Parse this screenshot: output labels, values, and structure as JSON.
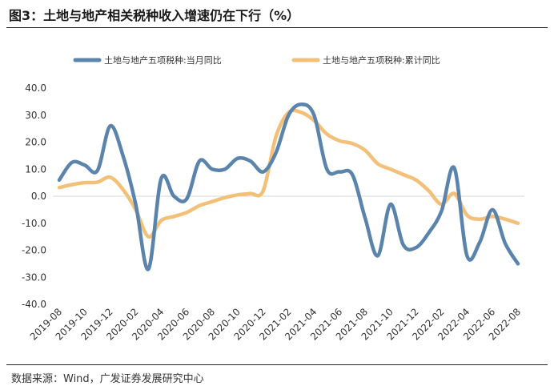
{
  "title": "图3：土地与地产相关税种收入增速仍在下行（%）",
  "source": "数据来源：Wind，广发证券发展研究中心",
  "chart_data": {
    "type": "line",
    "title": "图3：土地与地产相关税种收入增速仍在下行（%）",
    "xlabel": "",
    "ylabel": "",
    "ylim": [
      -40,
      40
    ],
    "yticks": [
      "40.0",
      "30.0",
      "20.0",
      "10.0",
      "0.0",
      "-10.0",
      "-20.0",
      "-30.0",
      "-40.0"
    ],
    "ytick_values": [
      40,
      30,
      20,
      10,
      0,
      -10,
      -20,
      -30,
      -40
    ],
    "legend_position": "top",
    "x_tick_labels": [
      "2019-08",
      "2019-10",
      "2019-12",
      "2020-02",
      "2020-04",
      "2020-06",
      "2020-08",
      "2020-10",
      "2020-12",
      "2021-02",
      "2021-04",
      "2021-06",
      "2021-08",
      "2021-10",
      "2021-12",
      "2022-02",
      "2022-04",
      "2022-06",
      "2022-08"
    ],
    "x": [
      "2019-08",
      "2019-09",
      "2019-10",
      "2019-11",
      "2019-12",
      "2020-01",
      "2020-02",
      "2020-03",
      "2020-04",
      "2020-05",
      "2020-06",
      "2020-07",
      "2020-08",
      "2020-09",
      "2020-10",
      "2020-11",
      "2020-12",
      "2021-01",
      "2021-02",
      "2021-03",
      "2021-04",
      "2021-05",
      "2021-06",
      "2021-07",
      "2021-08",
      "2021-09",
      "2021-10",
      "2021-11",
      "2021-12",
      "2022-01",
      "2022-02",
      "2022-03",
      "2022-04",
      "2022-05",
      "2022-06",
      "2022-07",
      "2022-08"
    ],
    "series": [
      {
        "name": "土地与地产五项税种:当月同比",
        "color": "#5b84ad",
        "values": [
          6.0,
          12.5,
          11.5,
          9.5,
          26.0,
          15.0,
          -3.0,
          -27.0,
          6.5,
          0.0,
          -1.0,
          13.0,
          10.0,
          10.0,
          14.0,
          13.0,
          9.0,
          16.0,
          30.0,
          34.0,
          30.0,
          10.0,
          9.0,
          8.0,
          -8.0,
          -22.0,
          -3.0,
          -18.0,
          -19.0,
          -13.5,
          -5.5,
          10.5,
          -22.0,
          -17.0,
          -5.0,
          -17.5,
          -25.0
        ]
      },
      {
        "name": "土地与地产五项税种:累计同比",
        "color": "#f2c078",
        "values": [
          3.2,
          4.3,
          5.0,
          5.2,
          7.0,
          2.5,
          -5.0,
          -15.0,
          -9.0,
          -7.5,
          -6.0,
          -3.5,
          -2.0,
          -0.5,
          0.5,
          1.0,
          2.0,
          22.0,
          31.0,
          31.0,
          28.0,
          23.0,
          20.5,
          19.5,
          17.0,
          12.0,
          10.0,
          8.0,
          6.0,
          2.0,
          -3.0,
          1.0,
          -7.0,
          -8.5,
          -7.5,
          -8.5,
          -10.0
        ]
      }
    ]
  }
}
